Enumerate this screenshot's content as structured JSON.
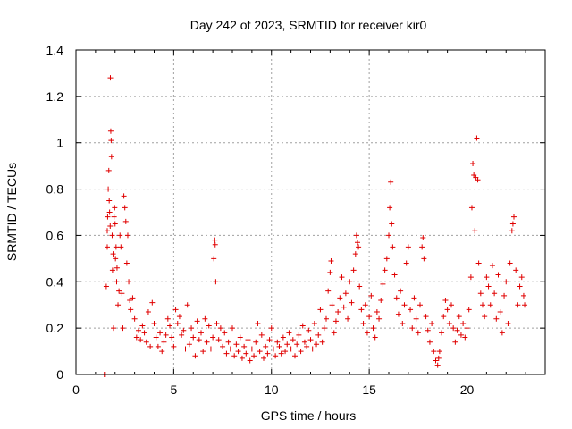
{
  "chart_data": {
    "type": "scatter",
    "title": "Day 242 of 2023, SRMTID for receiver kir0",
    "xlabel": "GPS time / hours",
    "ylabel": "SRMTID / TECUs",
    "xlim": [
      0,
      24
    ],
    "ylim": [
      0,
      1.4
    ],
    "xticks": [
      0,
      5,
      10,
      15,
      20
    ],
    "xtick_labels": [
      "0",
      "5",
      "10",
      "15",
      "20"
    ],
    "yticks": [
      0,
      0.2,
      0.4,
      0.6,
      0.8,
      1,
      1.2,
      1.4
    ],
    "ytick_labels": [
      "0",
      "0.2",
      "0.4",
      "0.6",
      "0.8",
      "1",
      "1.2",
      "1.4"
    ],
    "grid": true,
    "marker": "+",
    "color": "#e00000",
    "series": [
      {
        "name": "kir0",
        "points": [
          [
            1.45,
            0.0
          ],
          [
            1.5,
            0.0
          ],
          [
            1.55,
            0.38
          ],
          [
            1.6,
            0.55
          ],
          [
            1.6,
            0.62
          ],
          [
            1.62,
            0.68
          ],
          [
            1.65,
            0.8
          ],
          [
            1.68,
            0.88
          ],
          [
            1.7,
            0.75
          ],
          [
            1.72,
            0.7
          ],
          [
            1.75,
            0.64
          ],
          [
            1.76,
            1.28
          ],
          [
            1.78,
            1.05
          ],
          [
            1.8,
            1.01
          ],
          [
            1.82,
            0.94
          ],
          [
            1.85,
            0.6
          ],
          [
            1.87,
            0.45
          ],
          [
            1.9,
            0.52
          ],
          [
            1.92,
            0.2
          ],
          [
            1.95,
            0.68
          ],
          [
            1.98,
            0.72
          ],
          [
            2.0,
            0.65
          ],
          [
            2.02,
            0.5
          ],
          [
            2.05,
            0.55
          ],
          [
            2.08,
            0.4
          ],
          [
            2.1,
            0.46
          ],
          [
            2.15,
            0.3
          ],
          [
            2.2,
            0.36
          ],
          [
            2.25,
            0.6
          ],
          [
            2.3,
            0.55
          ],
          [
            2.35,
            0.35
          ],
          [
            2.4,
            0.2
          ],
          [
            2.45,
            0.77
          ],
          [
            2.5,
            0.72
          ],
          [
            2.55,
            0.66
          ],
          [
            2.6,
            0.48
          ],
          [
            2.65,
            0.6
          ],
          [
            2.7,
            0.4
          ],
          [
            2.75,
            0.32
          ],
          [
            2.8,
            0.28
          ],
          [
            2.9,
            0.33
          ],
          [
            3.0,
            0.24
          ],
          [
            3.1,
            0.16
          ],
          [
            3.2,
            0.19
          ],
          [
            3.3,
            0.15
          ],
          [
            3.4,
            0.21
          ],
          [
            3.5,
            0.18
          ],
          [
            3.6,
            0.14
          ],
          [
            3.7,
            0.27
          ],
          [
            3.8,
            0.12
          ],
          [
            3.9,
            0.31
          ],
          [
            4.0,
            0.22
          ],
          [
            4.1,
            0.16
          ],
          [
            4.2,
            0.12
          ],
          [
            4.3,
            0.18
          ],
          [
            4.4,
            0.1
          ],
          [
            4.5,
            0.14
          ],
          [
            4.6,
            0.17
          ],
          [
            4.7,
            0.24
          ],
          [
            4.8,
            0.21
          ],
          [
            4.9,
            0.16
          ],
          [
            5.0,
            0.12
          ],
          [
            5.1,
            0.28
          ],
          [
            5.2,
            0.22
          ],
          [
            5.3,
            0.25
          ],
          [
            5.4,
            0.17
          ],
          [
            5.5,
            0.19
          ],
          [
            5.6,
            0.11
          ],
          [
            5.7,
            0.3
          ],
          [
            5.8,
            0.13
          ],
          [
            5.9,
            0.2
          ],
          [
            6.0,
            0.16
          ],
          [
            6.1,
            0.08
          ],
          [
            6.2,
            0.23
          ],
          [
            6.3,
            0.15
          ],
          [
            6.4,
            0.18
          ],
          [
            6.5,
            0.1
          ],
          [
            6.6,
            0.24
          ],
          [
            6.7,
            0.14
          ],
          [
            6.8,
            0.21
          ],
          [
            6.9,
            0.11
          ],
          [
            7.0,
            0.16
          ],
          [
            7.05,
            0.5
          ],
          [
            7.1,
            0.58
          ],
          [
            7.12,
            0.56
          ],
          [
            7.15,
            0.4
          ],
          [
            7.2,
            0.22
          ],
          [
            7.3,
            0.15
          ],
          [
            7.4,
            0.2
          ],
          [
            7.5,
            0.12
          ],
          [
            7.6,
            0.18
          ],
          [
            7.7,
            0.09
          ],
          [
            7.8,
            0.14
          ],
          [
            7.9,
            0.11
          ],
          [
            8.0,
            0.2
          ],
          [
            8.1,
            0.08
          ],
          [
            8.2,
            0.13
          ],
          [
            8.3,
            0.1
          ],
          [
            8.4,
            0.16
          ],
          [
            8.5,
            0.07
          ],
          [
            8.6,
            0.12
          ],
          [
            8.7,
            0.09
          ],
          [
            8.8,
            0.15
          ],
          [
            8.9,
            0.06
          ],
          [
            9.0,
            0.11
          ],
          [
            9.1,
            0.08
          ],
          [
            9.2,
            0.14
          ],
          [
            9.3,
            0.22
          ],
          [
            9.4,
            0.1
          ],
          [
            9.5,
            0.17
          ],
          [
            9.6,
            0.07
          ],
          [
            9.7,
            0.12
          ],
          [
            9.8,
            0.09
          ],
          [
            9.9,
            0.15
          ],
          [
            10.0,
            0.2
          ],
          [
            10.1,
            0.11
          ],
          [
            10.2,
            0.08
          ],
          [
            10.3,
            0.14
          ],
          [
            10.4,
            0.12
          ],
          [
            10.5,
            0.09
          ],
          [
            10.6,
            0.16
          ],
          [
            10.7,
            0.1
          ],
          [
            10.8,
            0.13
          ],
          [
            10.9,
            0.18
          ],
          [
            11.0,
            0.11
          ],
          [
            11.1,
            0.15
          ],
          [
            11.2,
            0.08
          ],
          [
            11.3,
            0.13
          ],
          [
            11.4,
            0.17
          ],
          [
            11.5,
            0.1
          ],
          [
            11.6,
            0.21
          ],
          [
            11.7,
            0.14
          ],
          [
            11.8,
            0.12
          ],
          [
            11.9,
            0.19
          ],
          [
            12.0,
            0.15
          ],
          [
            12.1,
            0.11
          ],
          [
            12.2,
            0.22
          ],
          [
            12.3,
            0.13
          ],
          [
            12.4,
            0.17
          ],
          [
            12.5,
            0.28
          ],
          [
            12.6,
            0.14
          ],
          [
            12.7,
            0.2
          ],
          [
            12.8,
            0.24
          ],
          [
            12.9,
            0.36
          ],
          [
            13.0,
            0.44
          ],
          [
            13.05,
            0.49
          ],
          [
            13.1,
            0.3
          ],
          [
            13.2,
            0.18
          ],
          [
            13.3,
            0.23
          ],
          [
            13.4,
            0.27
          ],
          [
            13.5,
            0.33
          ],
          [
            13.6,
            0.42
          ],
          [
            13.7,
            0.29
          ],
          [
            13.8,
            0.35
          ],
          [
            13.9,
            0.24
          ],
          [
            14.0,
            0.4
          ],
          [
            14.1,
            0.31
          ],
          [
            14.2,
            0.45
          ],
          [
            14.3,
            0.52
          ],
          [
            14.35,
            0.6
          ],
          [
            14.4,
            0.57
          ],
          [
            14.45,
            0.55
          ],
          [
            14.5,
            0.38
          ],
          [
            14.6,
            0.28
          ],
          [
            14.7,
            0.22
          ],
          [
            14.8,
            0.3
          ],
          [
            14.9,
            0.18
          ],
          [
            15.0,
            0.25
          ],
          [
            15.1,
            0.34
          ],
          [
            15.2,
            0.2
          ],
          [
            15.3,
            0.16
          ],
          [
            15.4,
            0.27
          ],
          [
            15.5,
            0.24
          ],
          [
            15.6,
            0.32
          ],
          [
            15.7,
            0.39
          ],
          [
            15.8,
            0.45
          ],
          [
            15.9,
            0.5
          ],
          [
            16.0,
            0.6
          ],
          [
            16.05,
            0.72
          ],
          [
            16.1,
            0.83
          ],
          [
            16.15,
            0.65
          ],
          [
            16.2,
            0.55
          ],
          [
            16.3,
            0.43
          ],
          [
            16.4,
            0.33
          ],
          [
            16.5,
            0.26
          ],
          [
            16.6,
            0.36
          ],
          [
            16.7,
            0.22
          ],
          [
            16.8,
            0.3
          ],
          [
            16.9,
            0.48
          ],
          [
            17.0,
            0.55
          ],
          [
            17.1,
            0.28
          ],
          [
            17.2,
            0.2
          ],
          [
            17.3,
            0.33
          ],
          [
            17.4,
            0.24
          ],
          [
            17.5,
            0.18
          ],
          [
            17.6,
            0.3
          ],
          [
            17.7,
            0.55
          ],
          [
            17.75,
            0.59
          ],
          [
            17.8,
            0.5
          ],
          [
            17.9,
            0.25
          ],
          [
            18.0,
            0.19
          ],
          [
            18.1,
            0.14
          ],
          [
            18.2,
            0.22
          ],
          [
            18.3,
            0.1
          ],
          [
            18.4,
            0.06
          ],
          [
            18.5,
            0.04
          ],
          [
            18.55,
            0.07
          ],
          [
            18.6,
            0.1
          ],
          [
            18.7,
            0.18
          ],
          [
            18.8,
            0.25
          ],
          [
            18.9,
            0.32
          ],
          [
            19.0,
            0.28
          ],
          [
            19.1,
            0.22
          ],
          [
            19.2,
            0.3
          ],
          [
            19.3,
            0.2
          ],
          [
            19.4,
            0.14
          ],
          [
            19.5,
            0.19
          ],
          [
            19.6,
            0.25
          ],
          [
            19.7,
            0.17
          ],
          [
            19.8,
            0.22
          ],
          [
            19.9,
            0.16
          ],
          [
            20.0,
            0.2
          ],
          [
            20.1,
            0.28
          ],
          [
            20.2,
            0.42
          ],
          [
            20.25,
            0.72
          ],
          [
            20.3,
            0.91
          ],
          [
            20.35,
            0.86
          ],
          [
            20.4,
            0.62
          ],
          [
            20.45,
            0.85
          ],
          [
            20.5,
            1.02
          ],
          [
            20.55,
            0.84
          ],
          [
            20.6,
            0.48
          ],
          [
            20.7,
            0.35
          ],
          [
            20.8,
            0.3
          ],
          [
            20.9,
            0.25
          ],
          [
            21.0,
            0.42
          ],
          [
            21.1,
            0.38
          ],
          [
            21.2,
            0.3
          ],
          [
            21.3,
            0.47
          ],
          [
            21.4,
            0.35
          ],
          [
            21.5,
            0.24
          ],
          [
            21.6,
            0.43
          ],
          [
            21.7,
            0.27
          ],
          [
            21.8,
            0.18
          ],
          [
            21.9,
            0.34
          ],
          [
            22.0,
            0.4
          ],
          [
            22.1,
            0.22
          ],
          [
            22.2,
            0.48
          ],
          [
            22.3,
            0.62
          ],
          [
            22.35,
            0.65
          ],
          [
            22.4,
            0.68
          ],
          [
            22.5,
            0.45
          ],
          [
            22.6,
            0.3
          ],
          [
            22.7,
            0.38
          ],
          [
            22.8,
            0.42
          ],
          [
            22.9,
            0.34
          ],
          [
            22.95,
            0.3
          ]
        ]
      }
    ]
  }
}
